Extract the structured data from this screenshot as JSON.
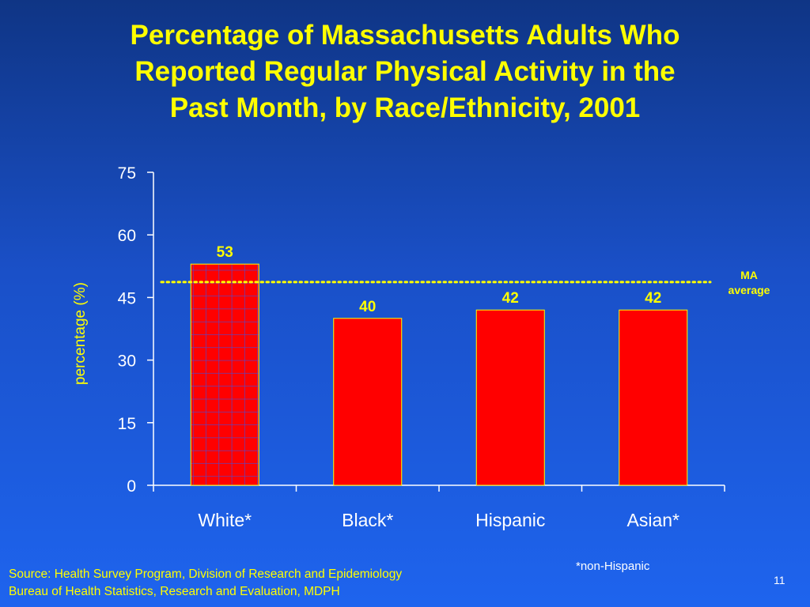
{
  "slide": {
    "title_lines": [
      "Percentage of Massachusetts Adults Who",
      "Reported Regular Physical Activity in the",
      "Past Month, by Race/Ethnicity, 2001"
    ],
    "footnote": "*non-Hispanic",
    "source_lines": [
      "Source: Health Survey Program, Division of Research and Epidemiology",
      "Bureau of Health Statistics, Research and Evaluation, MDPH"
    ],
    "page_number": "11"
  },
  "chart_data": {
    "type": "bar",
    "title": "Percentage of Massachusetts Adults Who Reported Regular Physical Activity in the Past Month, by Race/Ethnicity, 2001",
    "xlabel": "",
    "ylabel": "percentage (%)",
    "categories": [
      "White*",
      "Black*",
      "Hispanic",
      "Asian*"
    ],
    "values": [
      53,
      40,
      42,
      42
    ],
    "data_labels": [
      "53",
      "40",
      "42",
      "42"
    ],
    "ylim": [
      0,
      75
    ],
    "yticks": [
      0,
      15,
      30,
      45,
      60,
      75
    ],
    "grid": false,
    "bar_color": "#ff0000",
    "bar_outline_color": "#ffff00",
    "highlight_pattern_category": "White*",
    "highlight_pattern_color": "#4b4bd6",
    "reference_line": {
      "label_lines": [
        "MA",
        "average"
      ],
      "value": 48.7,
      "style": "dotted",
      "color": "#ffff00"
    }
  },
  "colors": {
    "title": "#ffff00",
    "axis": "#ffffff",
    "text": "#ffffff",
    "accent": "#ffff00"
  }
}
